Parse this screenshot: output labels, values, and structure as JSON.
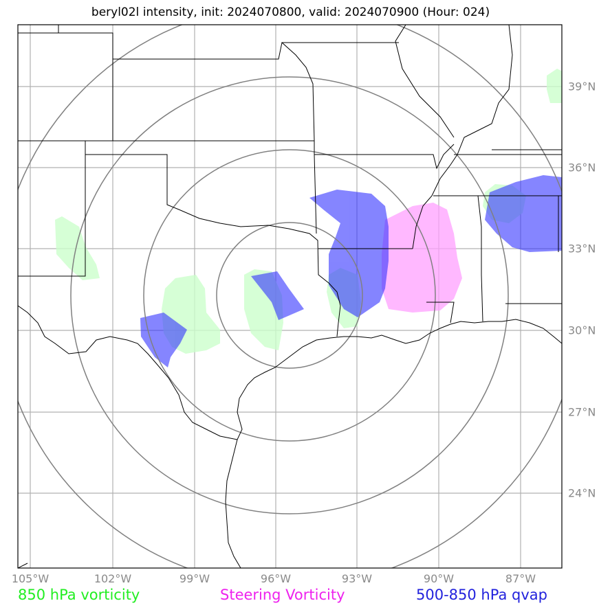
{
  "title": "beryl02l intensity, init: 2024070800, valid: 2024070900 (Hour: 024)",
  "lon_labels": [
    "105°W",
    "102°W",
    "99°W",
    "96°W",
    "93°W",
    "90°W",
    "87°W"
  ],
  "lat_labels": [
    "39°N",
    "36°N",
    "33°N",
    "30°N",
    "27°N",
    "24°N"
  ],
  "legend": {
    "vorticity_850": {
      "label": "850 hPa vorticity",
      "color": "#22ee22"
    },
    "steering": {
      "label": "Steering Vorticity",
      "color": "#ee22ee"
    },
    "qvap": {
      "label": "500-850 hPa qvap",
      "color": "#2222dd"
    }
  },
  "range_rings_color": "#808080",
  "grid_color": "#b0b0b0",
  "fill_colors": {
    "vorticity_850": "#ccffcc",
    "steering": "#ffa0ff",
    "qvap": "#3333ff"
  }
}
